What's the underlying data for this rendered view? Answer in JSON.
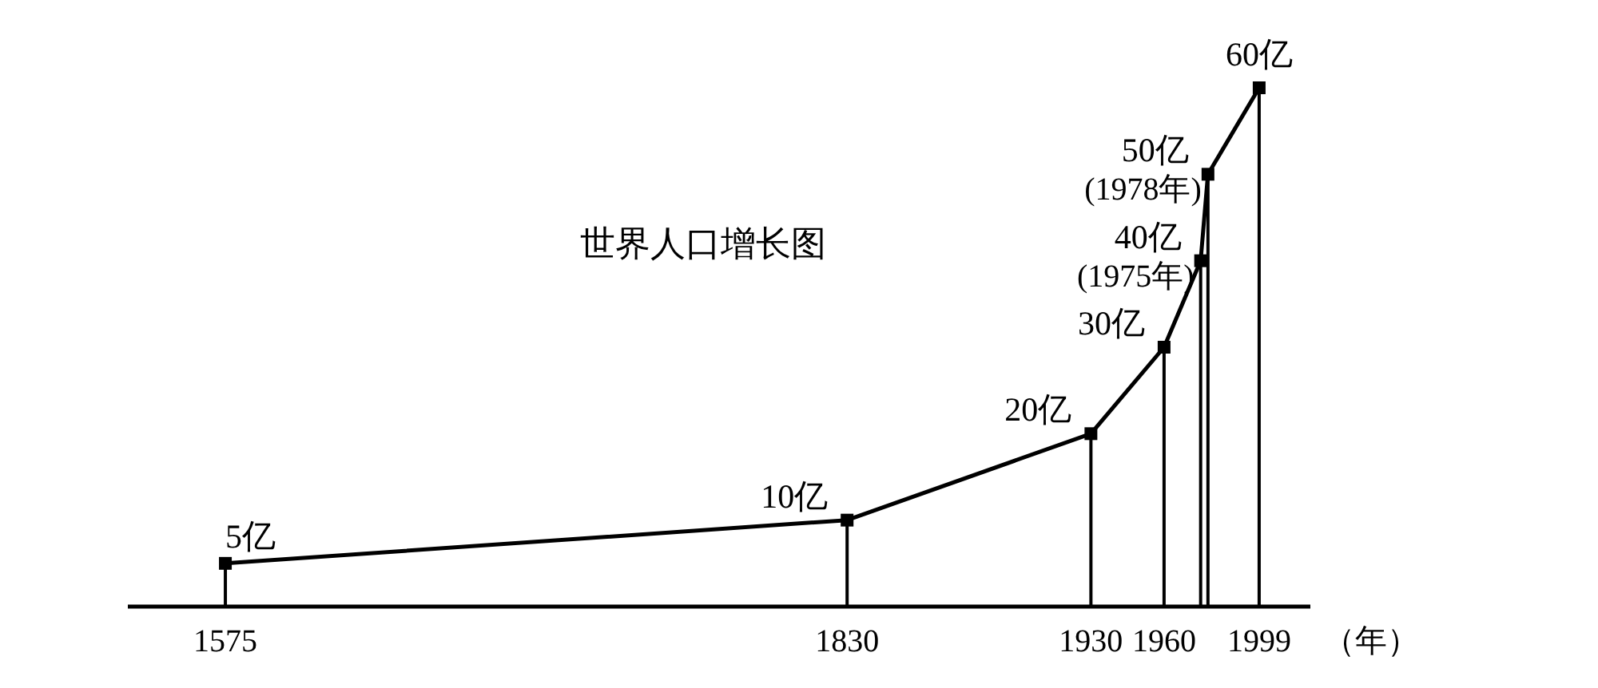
{
  "chart_data": {
    "type": "line",
    "title": "世界人口增长图",
    "xlabel": "（年）",
    "x": [
      1575,
      1830,
      1930,
      1960,
      1975,
      1978,
      1999
    ],
    "values": [
      5,
      10,
      20,
      30,
      40,
      50,
      60
    ],
    "value_labels": [
      "5亿",
      "10亿",
      "20亿",
      "30亿",
      "40亿",
      "50亿",
      "60亿"
    ],
    "color": "#000000",
    "marker": "square",
    "line_style": "solid",
    "xlim": [
      1535,
      2020
    ],
    "xticks": [
      1575,
      1830,
      1930,
      1960,
      {
        "value": 1975,
        "label": null
      },
      {
        "value": 1978,
        "label": null
      },
      1999
    ],
    "ylim": [
      0,
      60
    ],
    "tick_labels": "x",
    "grid": "x",
    "annotations": [
      {
        "text": "(1975年)",
        "x": 1975,
        "y": 40
      },
      {
        "text": "(1978年)",
        "x": 1978,
        "y": 50
      }
    ]
  }
}
